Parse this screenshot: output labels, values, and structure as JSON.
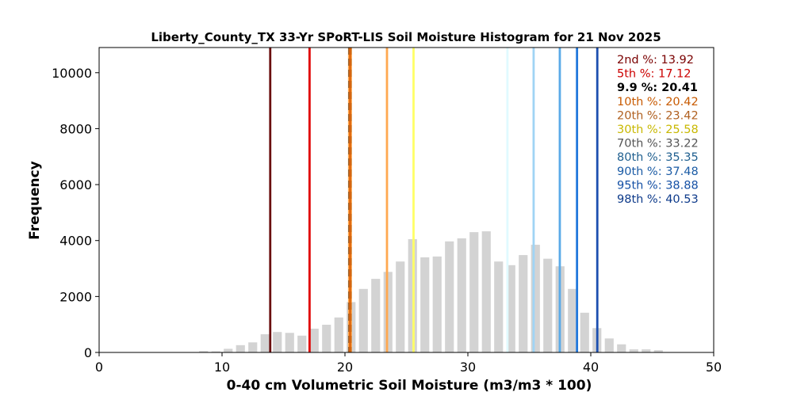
{
  "chart_data": {
    "type": "bar",
    "title": "Liberty_County_TX 33-Yr SPoRT-LIS Soil Moisture Histogram for 21 Nov 2025",
    "xlabel": "0-40 cm Volumetric Soil Moisture (m3/m3 * 100)",
    "ylabel": "Frequency",
    "xlim": [
      0,
      50
    ],
    "ylim": [
      0,
      10900
    ],
    "x_ticks": [
      0,
      10,
      20,
      30,
      40,
      50
    ],
    "y_ticks": [
      0,
      2000,
      4000,
      6000,
      8000,
      10000
    ],
    "grid": false,
    "bar_color": "#d3d3d3",
    "bins": [
      {
        "x": 8.5,
        "value": 50
      },
      {
        "x": 9.5,
        "value": 40
      },
      {
        "x": 10.5,
        "value": 130
      },
      {
        "x": 11.5,
        "value": 260
      },
      {
        "x": 12.5,
        "value": 360
      },
      {
        "x": 13.5,
        "value": 650
      },
      {
        "x": 14.5,
        "value": 730
      },
      {
        "x": 15.5,
        "value": 700
      },
      {
        "x": 16.5,
        "value": 600
      },
      {
        "x": 17.5,
        "value": 850
      },
      {
        "x": 18.5,
        "value": 990
      },
      {
        "x": 19.5,
        "value": 1250
      },
      {
        "x": 20.5,
        "value": 1800
      },
      {
        "x": 21.5,
        "value": 2270
      },
      {
        "x": 22.5,
        "value": 2630
      },
      {
        "x": 23.5,
        "value": 2880
      },
      {
        "x": 24.5,
        "value": 3250
      },
      {
        "x": 25.5,
        "value": 4050
      },
      {
        "x": 26.5,
        "value": 3400
      },
      {
        "x": 27.5,
        "value": 3430
      },
      {
        "x": 28.5,
        "value": 3970
      },
      {
        "x": 29.5,
        "value": 4080
      },
      {
        "x": 30.5,
        "value": 4300
      },
      {
        "x": 31.5,
        "value": 4330
      },
      {
        "x": 32.5,
        "value": 3250
      },
      {
        "x": 33.5,
        "value": 3120
      },
      {
        "x": 34.5,
        "value": 3480
      },
      {
        "x": 35.5,
        "value": 3850
      },
      {
        "x": 36.5,
        "value": 3350
      },
      {
        "x": 37.5,
        "value": 3080
      },
      {
        "x": 38.5,
        "value": 2270
      },
      {
        "x": 39.5,
        "value": 1420
      },
      {
        "x": 40.5,
        "value": 870
      },
      {
        "x": 41.5,
        "value": 500
      },
      {
        "x": 42.5,
        "value": 290
      },
      {
        "x": 43.5,
        "value": 110
      },
      {
        "x": 44.5,
        "value": 110
      },
      {
        "x": 45.5,
        "value": 80
      }
    ],
    "percentile_lines": [
      {
        "label": "2nd %: 13.92",
        "value": 13.92,
        "color": "#6b0f0f",
        "dashed": false
      },
      {
        "label": "5th %: 17.12",
        "value": 17.12,
        "color": "#e00000",
        "dashed": false
      },
      {
        "label": "9.9 %: 20.41",
        "value": 20.41,
        "color": "#000000",
        "dashed": true
      },
      {
        "label": "10th %: 20.42",
        "value": 20.42,
        "color": "#e06a10",
        "dashed": false
      },
      {
        "label": "20th %: 23.42",
        "value": 23.42,
        "color": "#ffa850",
        "dashed": false
      },
      {
        "label": "30th %: 25.58",
        "value": 25.58,
        "color": "#ffff66",
        "dashed": false
      },
      {
        "label": "70th %: 33.22",
        "value": 33.22,
        "color": "#e0faff",
        "dashed": false
      },
      {
        "label": "80th %: 35.35",
        "value": 35.35,
        "color": "#a0d4f5",
        "dashed": false
      },
      {
        "label": "90th %: 37.48",
        "value": 37.48,
        "color": "#5aaae8",
        "dashed": false
      },
      {
        "label": "95th %: 38.88",
        "value": 38.88,
        "color": "#2278dc",
        "dashed": false
      },
      {
        "label": "98th %: 40.53",
        "value": 40.53,
        "color": "#1c4fb0",
        "dashed": false
      }
    ],
    "legend_text_colors": [
      "#7a0000",
      "#cc0000",
      "#000000",
      "#c85a00",
      "#b06020",
      "#c8b800",
      "#555555",
      "#1f5f8f",
      "#1a5ba5",
      "#1450a5",
      "#0d3a8a"
    ],
    "legend_location": "top-right"
  }
}
